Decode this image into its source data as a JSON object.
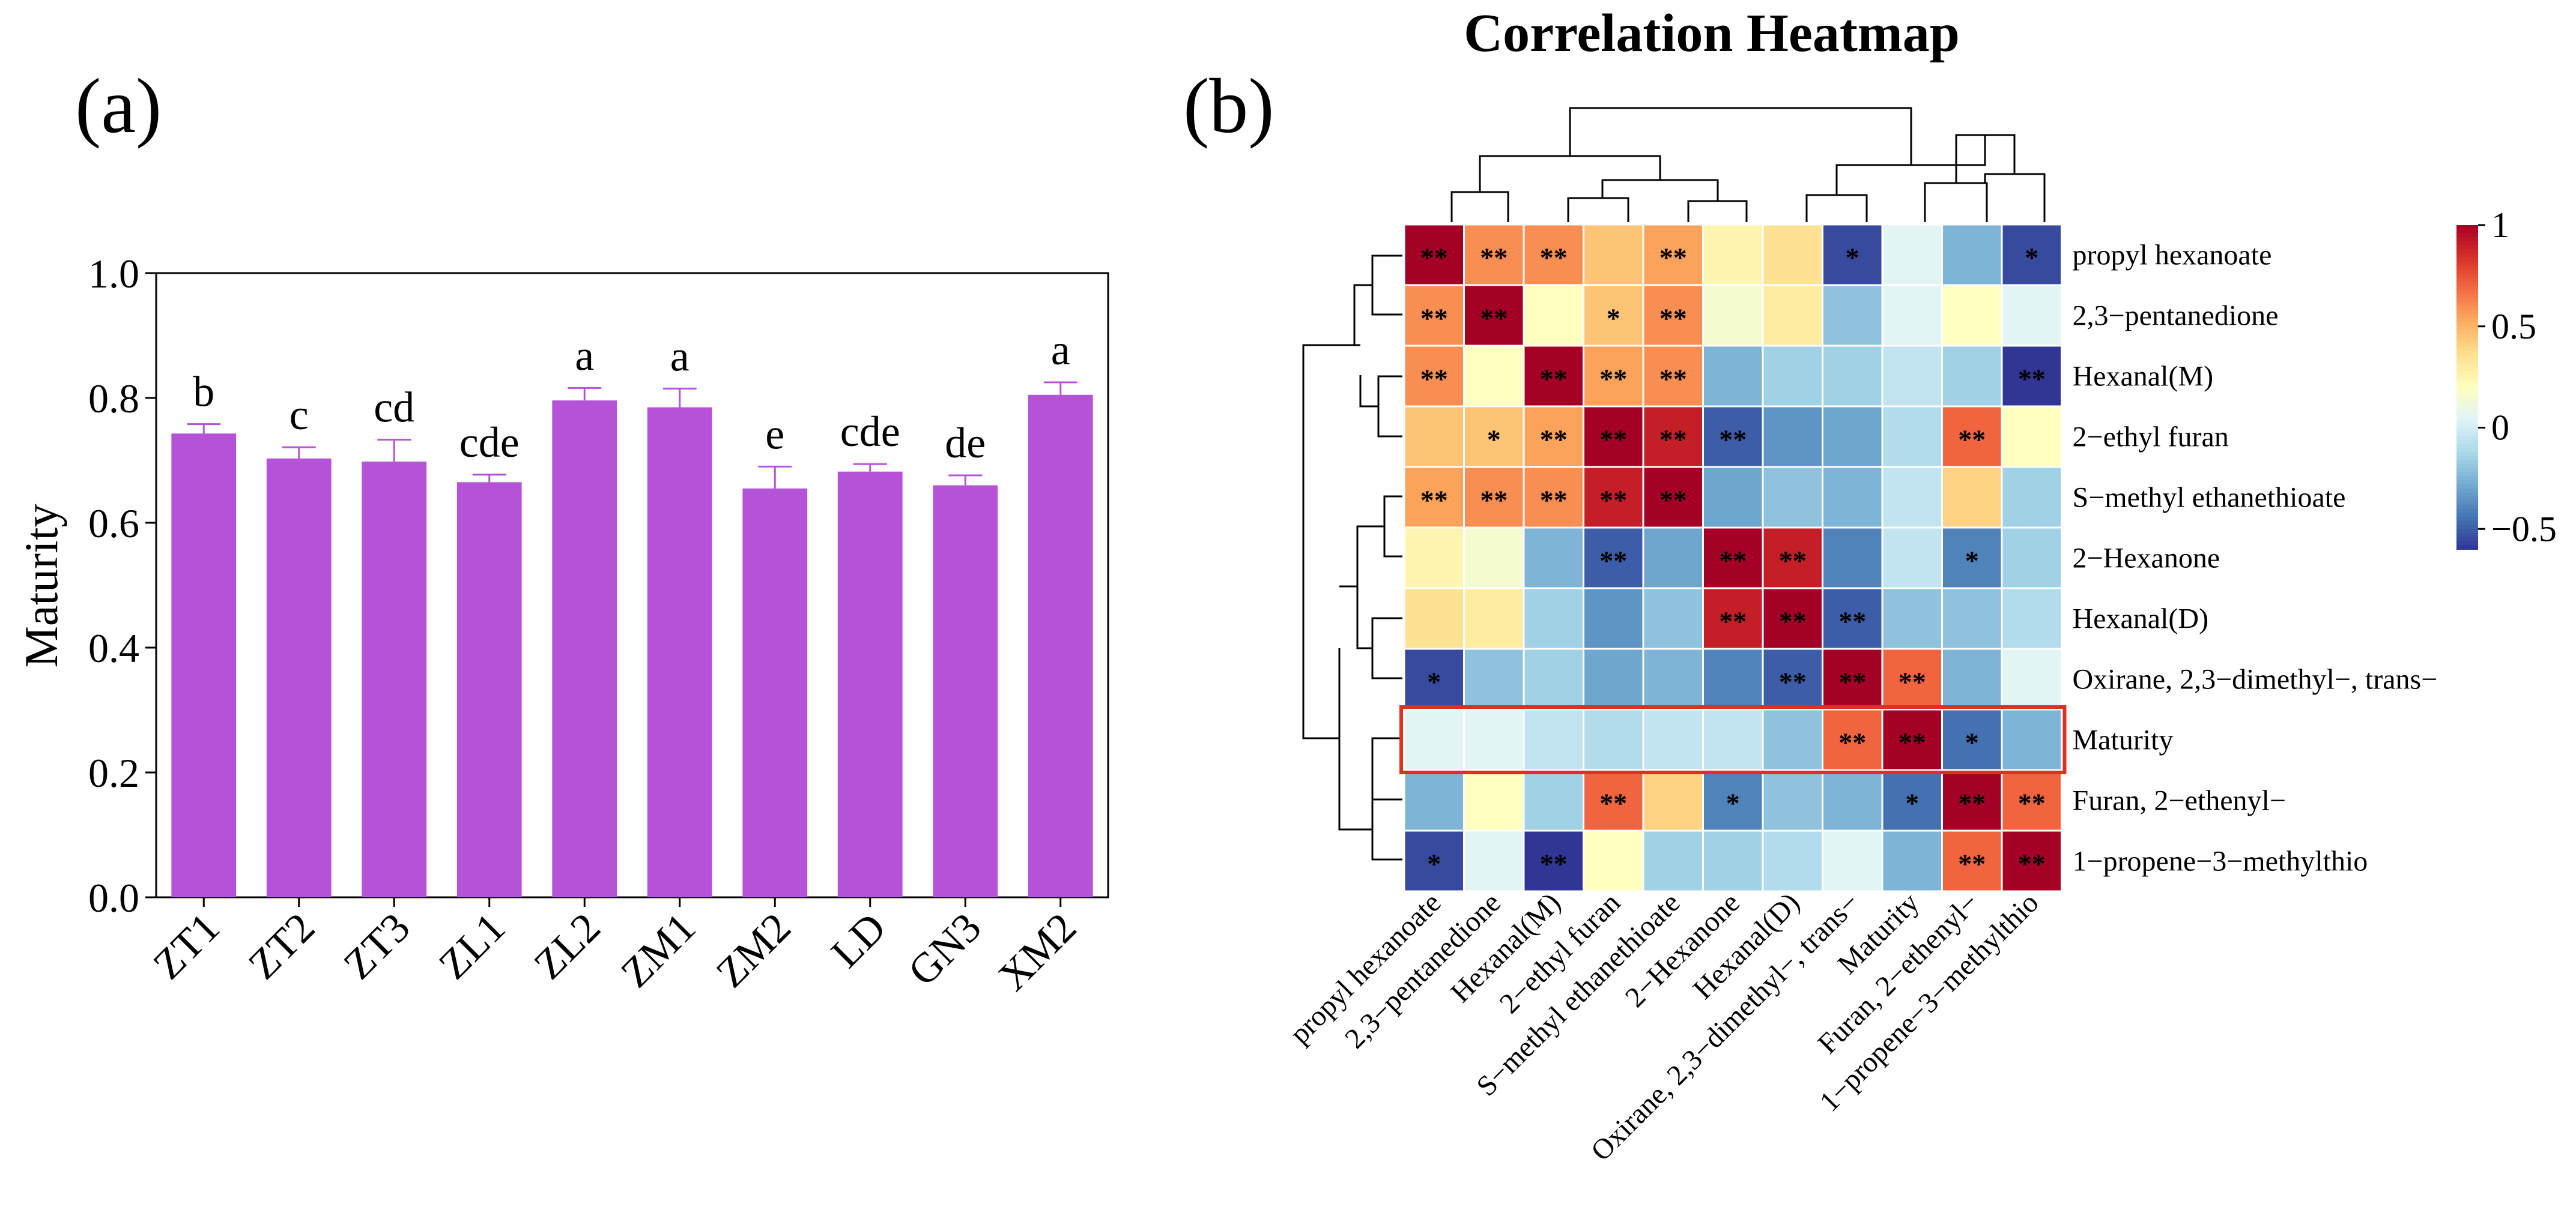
{
  "panels": {
    "a": "(a)",
    "b": "(b)"
  },
  "chart_data": [
    {
      "type": "bar",
      "panel": "(a)",
      "title": "",
      "xlabel": "",
      "ylabel": "Maturity",
      "ylim": [
        0.0,
        1.0
      ],
      "yticks": [
        "0.0",
        "0.2",
        "0.4",
        "0.6",
        "0.8",
        "1.0"
      ],
      "bar_color": "#b553d8",
      "categories": [
        "ZT1",
        "ZT2",
        "ZT3",
        "ZL1",
        "ZL2",
        "ZM1",
        "ZM2",
        "LD",
        "GN3",
        "XM2"
      ],
      "values": [
        0.743,
        0.703,
        0.698,
        0.665,
        0.796,
        0.785,
        0.655,
        0.682,
        0.66,
        0.805
      ],
      "errors": [
        0.015,
        0.018,
        0.035,
        0.012,
        0.02,
        0.03,
        0.035,
        0.012,
        0.016,
        0.02
      ],
      "significance": [
        "b",
        "c",
        "cd",
        "cde",
        "a",
        "a",
        "e",
        "cde",
        "de",
        "a"
      ]
    },
    {
      "type": "heatmap",
      "panel": "(b)",
      "title": "Correlation Heatmap",
      "labels": [
        "propyl hexanoate",
        "2,3−pentanedione",
        "Hexanal(M)",
        "2−ethyl furan",
        "S−methyl ethanethioate",
        "2−Hexanone",
        "Hexanal(D)",
        "Oxirane, 2,3−dimethyl−, trans−",
        "Maturity",
        "Furan, 2−ethenyl−",
        "1−propene−3−methylthio"
      ],
      "highlight_label": "Maturity",
      "highlight_color": "#e0301e",
      "matrix": [
        [
          1.0,
          0.6,
          0.6,
          0.45,
          0.55,
          0.25,
          0.35,
          -0.55,
          0.05,
          -0.25,
          -0.55
        ],
        [
          0.6,
          1.0,
          0.2,
          0.45,
          0.6,
          0.15,
          0.3,
          -0.2,
          0.05,
          0.2,
          0.05
        ],
        [
          0.6,
          0.2,
          1.0,
          0.55,
          0.6,
          -0.25,
          -0.15,
          -0.15,
          -0.05,
          -0.15,
          -0.6
        ],
        [
          0.45,
          0.45,
          0.55,
          1.0,
          0.9,
          -0.5,
          -0.35,
          -0.3,
          -0.1,
          0.7,
          0.2
        ],
        [
          0.55,
          0.6,
          0.6,
          0.9,
          1.0,
          -0.3,
          -0.2,
          -0.25,
          -0.05,
          0.4,
          -0.15
        ],
        [
          0.25,
          0.15,
          -0.25,
          -0.5,
          -0.3,
          1.0,
          0.9,
          -0.4,
          -0.05,
          -0.4,
          -0.15
        ],
        [
          0.35,
          0.3,
          -0.15,
          -0.35,
          -0.2,
          0.9,
          1.0,
          -0.5,
          -0.2,
          -0.2,
          -0.1
        ],
        [
          -0.55,
          -0.2,
          -0.15,
          -0.3,
          -0.25,
          -0.4,
          -0.5,
          1.0,
          0.7,
          -0.25,
          0.05
        ],
        [
          0.05,
          0.05,
          -0.05,
          -0.1,
          -0.05,
          -0.05,
          -0.2,
          0.7,
          1.0,
          -0.45,
          -0.25
        ],
        [
          -0.25,
          0.2,
          -0.15,
          0.7,
          0.4,
          -0.4,
          -0.2,
          -0.25,
          -0.45,
          1.0,
          0.7
        ],
        [
          -0.55,
          0.05,
          -0.6,
          0.2,
          -0.15,
          -0.15,
          -0.1,
          0.05,
          -0.25,
          0.7,
          1.0
        ]
      ],
      "stars": [
        [
          "**",
          "**",
          "**",
          "",
          "**",
          "",
          "",
          "*",
          "",
          "",
          "*"
        ],
        [
          "**",
          "**",
          "",
          "*",
          "**",
          "",
          "",
          "",
          "",
          "",
          ""
        ],
        [
          "**",
          "",
          "**",
          "**",
          "**",
          "",
          "",
          "",
          "",
          "",
          "**"
        ],
        [
          "",
          "*",
          "**",
          "**",
          "**",
          "**",
          "",
          "",
          "",
          "**",
          ""
        ],
        [
          "**",
          "**",
          "**",
          "**",
          "**",
          "",
          "",
          "",
          "",
          "",
          ""
        ],
        [
          "",
          "",
          "",
          "**",
          "",
          "**",
          "**",
          "",
          "",
          "*",
          ""
        ],
        [
          "",
          "",
          "",
          "",
          "",
          "**",
          "**",
          "**",
          "",
          "",
          ""
        ],
        [
          "*",
          "",
          "",
          "",
          "",
          "",
          "**",
          "**",
          "**",
          "",
          ""
        ],
        [
          "",
          "",
          "",
          "",
          "",
          "",
          "",
          "**",
          "**",
          "*",
          ""
        ],
        [
          "",
          "",
          "",
          "**",
          "",
          "*",
          "",
          "",
          "*",
          "**",
          "**"
        ],
        [
          "*",
          "",
          "**",
          "",
          "",
          "",
          "",
          "",
          "",
          "**",
          "**"
        ]
      ],
      "colorbar": {
        "range": [
          -0.6,
          1.0
        ],
        "ticks": [
          "1",
          "0.5",
          "0",
          "−0.5"
        ],
        "tick_values": [
          1.0,
          0.5,
          0.0,
          -0.5
        ]
      },
      "colormap": [
        "#313695",
        "#4575b4",
        "#74add1",
        "#abd9e9",
        "#e0f3f8",
        "#ffffbf",
        "#fee090",
        "#fdae61",
        "#f46d43",
        "#d73027",
        "#a50026"
      ]
    }
  ]
}
